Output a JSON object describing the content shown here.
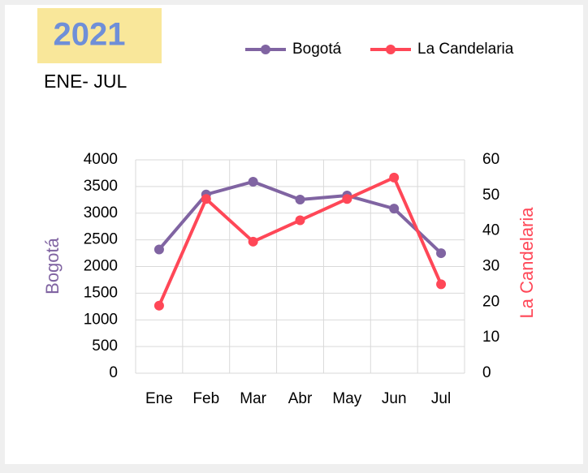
{
  "chart_data": {
    "type": "line",
    "title": "2021",
    "subtitle": "ENE- JUL",
    "categories": [
      "Ene",
      "Feb",
      "Mar",
      "Abr",
      "May",
      "Jun",
      "Jul"
    ],
    "series": [
      {
        "name": "Bogotá",
        "color": "#8064a2",
        "values": [
          2320,
          3350,
          3590,
          3255,
          3330,
          3085,
          2250
        ]
      },
      {
        "name": "La Candelaria",
        "color": "#ff4757",
        "axis": "y2",
        "values": [
          19,
          49,
          37,
          43,
          49,
          55,
          25
        ]
      }
    ],
    "ylabel": "Bogotá",
    "y2label": "La Candelaria",
    "ylim": [
      0,
      4000
    ],
    "yticks": [
      0,
      500,
      1000,
      1500,
      2000,
      2500,
      3000,
      3500,
      4000
    ],
    "y2lim": [
      0,
      60
    ],
    "y2ticks": [
      0,
      10,
      20,
      30,
      40,
      50,
      60
    ],
    "grid": true,
    "legend": "top-right"
  }
}
